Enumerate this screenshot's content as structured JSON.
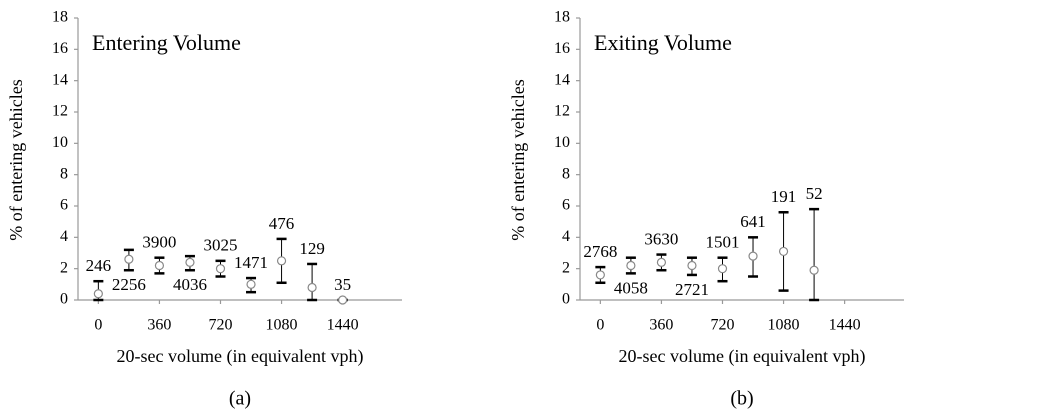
{
  "chart_data": [
    {
      "type": "scatter",
      "title": "Entering Volume",
      "x_label": "20-sec volume (in equivalent vph)",
      "y_label": "% of entering vehicles",
      "panel_label": "(a)",
      "x": [
        0,
        180,
        360,
        540,
        720,
        900,
        1080,
        1260,
        1440
      ],
      "values": [
        0.4,
        2.6,
        2.2,
        2.4,
        2.0,
        1.0,
        2.5,
        0.8,
        0
      ],
      "lower": [
        0,
        1.9,
        1.7,
        1.9,
        1.5,
        0.5,
        1.1,
        0,
        0
      ],
      "upper": [
        1.2,
        3.2,
        2.7,
        2.8,
        2.5,
        1.4,
        3.9,
        2.3,
        0
      ],
      "counts": [
        246,
        2256,
        3900,
        4036,
        3025,
        1471,
        476,
        129,
        35
      ],
      "label_side": [
        "above",
        "below",
        "above",
        "below",
        "above",
        "above",
        "above",
        "above",
        "above"
      ],
      "xlim": [
        -120,
        1790
      ],
      "xticks": [
        0,
        360,
        720,
        1080,
        1440
      ],
      "ylim": [
        0,
        18
      ],
      "yticks": [
        0,
        2,
        4,
        6,
        8,
        10,
        12,
        14,
        16,
        18
      ]
    },
    {
      "type": "scatter",
      "title": "Exiting Volume",
      "x_label": "20-sec volume (in equivalent vph)",
      "y_label": "% of entering vehicles",
      "panel_label": "(b)",
      "x": [
        0,
        180,
        360,
        540,
        720,
        900,
        1080,
        1260
      ],
      "values": [
        1.6,
        2.2,
        2.4,
        2.2,
        2.0,
        2.8,
        3.1,
        1.9
      ],
      "lower": [
        1.1,
        1.7,
        1.9,
        1.6,
        1.2,
        1.5,
        0.6,
        0
      ],
      "upper": [
        2.1,
        2.7,
        2.9,
        2.7,
        2.7,
        4.0,
        5.6,
        5.8
      ],
      "counts": [
        2768,
        4058,
        3630,
        2721,
        1501,
        641,
        191,
        52
      ],
      "label_side": [
        "above",
        "below",
        "above",
        "below",
        "above",
        "above",
        "above",
        "above"
      ],
      "xlim": [
        -120,
        1790
      ],
      "xticks": [
        0,
        360,
        720,
        1080,
        1440
      ],
      "ylim": [
        0,
        18
      ],
      "yticks": [
        0,
        2,
        4,
        6,
        8,
        10,
        12,
        14,
        16,
        18
      ]
    }
  ]
}
